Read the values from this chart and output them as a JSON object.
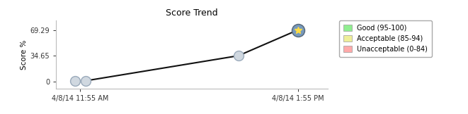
{
  "title": "Score Trend",
  "ylabel": "Score %",
  "x_tick_labels": [
    "4/8/14 11:55 AM",
    "4/8/14 1:55 PM"
  ],
  "x_tick_positions": [
    0.075,
    3.0
  ],
  "x_data": [
    0.0,
    0.15,
    2.2,
    3.0
  ],
  "y_data": [
    0.5,
    1.0,
    34.65,
    69.29
  ],
  "yticks": [
    0,
    34.65,
    69.29
  ],
  "ytick_labels": [
    "0",
    "34.65",
    "69.29"
  ],
  "xlim": [
    -0.25,
    3.4
  ],
  "ylim": [
    -10,
    82
  ],
  "line_color": "#111111",
  "line_width": 1.5,
  "open_marker_face": "#d0d8e0",
  "open_marker_edge": "#9aaabb",
  "star_marker_bg": "#7799bb",
  "star_marker_edge": "#556677",
  "star_color": "#ffdd44",
  "background_color": "#ffffff",
  "legend_items": [
    {
      "label": "Good (95-100)",
      "color": "#90ee90"
    },
    {
      "label": "Acceptable (85-94)",
      "color": "#eeee99"
    },
    {
      "label": "Unacceptable (0-84)",
      "color": "#ffaaaa"
    }
  ],
  "title_fontsize": 9,
  "axis_label_fontsize": 7.5,
  "tick_fontsize": 7,
  "legend_fontsize": 7
}
